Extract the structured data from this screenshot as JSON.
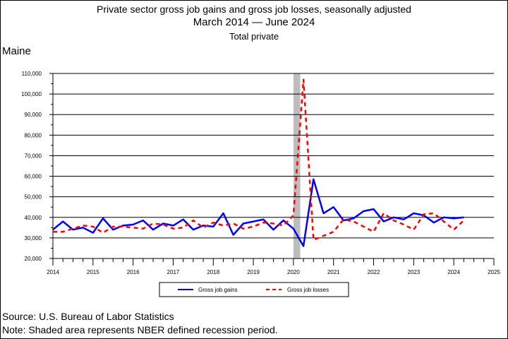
{
  "header": {
    "title": "Private sector gross job gains and gross job losses, seasonally adjusted",
    "subtitle": "March 2014 — June 2024",
    "series_scope": "Total private",
    "region": "Maine"
  },
  "footer": {
    "source": "Source: U.S. Bureau of Labor Statistics",
    "note": "Note: Shaded area represents NBER defined recession period."
  },
  "colors": {
    "gains": "#0000ff",
    "losses": "#ff0000",
    "recession": "#bdbdbd",
    "grid": "#000000"
  },
  "chart_data": {
    "type": "line",
    "title": "Private sector gross job gains and gross job losses, seasonally adjusted",
    "xlim": [
      2014,
      2025
    ],
    "ylim": [
      20000,
      110000
    ],
    "x_ticks": [
      "2014",
      "2015",
      "2016",
      "2017",
      "2018",
      "2019",
      "2020",
      "2021",
      "2022",
      "2023",
      "2024",
      "2025"
    ],
    "y_ticks": [
      "20,000",
      "30,000",
      "40,000",
      "50,000",
      "60,000",
      "70,000",
      "80,000",
      "90,000",
      "100,000",
      "110,000"
    ],
    "y_tick_values": [
      20000,
      30000,
      40000,
      50000,
      60000,
      70000,
      80000,
      90000,
      100000,
      110000
    ],
    "recession": {
      "start": 2020.0,
      "end": 2020.17
    },
    "grid": true,
    "legend_position": "bottom-center",
    "x": [
      2014.0,
      2014.25,
      2014.5,
      2014.75,
      2015.0,
      2015.25,
      2015.5,
      2015.75,
      2016.0,
      2016.25,
      2016.5,
      2016.75,
      2017.0,
      2017.25,
      2017.5,
      2017.75,
      2018.0,
      2018.25,
      2018.5,
      2018.75,
      2019.0,
      2019.25,
      2019.5,
      2019.75,
      2020.0,
      2020.25,
      2020.5,
      2020.75,
      2021.0,
      2021.25,
      2021.5,
      2021.75,
      2022.0,
      2022.25,
      2022.5,
      2022.75,
      2023.0,
      2023.25,
      2023.5,
      2023.75,
      2024.0,
      2024.25
    ],
    "series": [
      {
        "name": "Gross job gains",
        "style": "solid",
        "values": [
          34000,
          38000,
          34000,
          35000,
          32500,
          39500,
          34000,
          36000,
          36500,
          38500,
          34000,
          37000,
          36000,
          39000,
          34000,
          36000,
          35500,
          42000,
          31500,
          37000,
          38000,
          39000,
          34000,
          38500,
          34500,
          26000,
          58500,
          42000,
          45000,
          38500,
          39500,
          43000,
          44000,
          38000,
          40000,
          39000,
          42000,
          41000,
          37500,
          40000,
          39500,
          40000
        ]
      },
      {
        "name": "Gross job losses",
        "style": "dashed",
        "values": [
          33000,
          33000,
          34500,
          36000,
          35500,
          32500,
          35500,
          35500,
          35000,
          34500,
          37000,
          36500,
          34500,
          35000,
          38500,
          35000,
          37500,
          36000,
          37000,
          34500,
          35500,
          37500,
          37000,
          36000,
          41000,
          107000,
          29000,
          31000,
          33000,
          39000,
          38000,
          35500,
          33000,
          42000,
          38500,
          36500,
          34000,
          41500,
          42000,
          38000,
          34000,
          38500
        ]
      }
    ]
  }
}
